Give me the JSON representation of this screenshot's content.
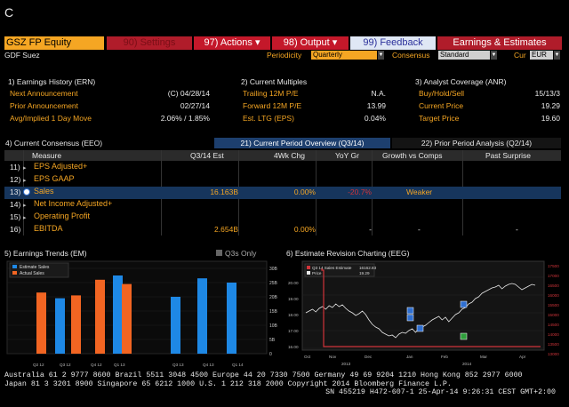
{
  "command": "C",
  "toolbar": {
    "ticker": "GSZ FP Equity",
    "settings": "90) Settings",
    "actions": "97) Actions ▾",
    "output": "98) Output ▾",
    "feedback": "99) Feedback",
    "earnings": "Earnings & Estimates"
  },
  "subbar": {
    "company": "GDF Suez",
    "periodicity_label": "Periodicity",
    "periodicity_value": "Quarterly",
    "consensus_label": "Consensus",
    "consensus_value": "Standard",
    "cur_label": "Cur",
    "cur_value": "EUR"
  },
  "earnings_history": {
    "title": "1) Earnings History (ERN)",
    "rows": [
      {
        "label": "Next Announcement",
        "value": "(C)  04/28/14"
      },
      {
        "label": "Prior Announcement",
        "value": "02/27/14"
      },
      {
        "label": "Avg/Implied 1 Day Move",
        "value": "2.06% / 1.85%"
      }
    ]
  },
  "current_multiples": {
    "title": "2) Current Multiples",
    "rows": [
      {
        "label": "Trailing 12M P/E",
        "value": "N.A."
      },
      {
        "label": "Forward 12M P/E",
        "value": "13.99"
      },
      {
        "label": "Est. LTG (EPS)",
        "value": "0.04%"
      }
    ]
  },
  "analyst_coverage": {
    "title": "3) Analyst Coverage (ANR)",
    "rows": [
      {
        "label": "Buy/Hold/Sell",
        "value": "15/13/3"
      },
      {
        "label": "Current Price",
        "value": "19.29"
      },
      {
        "label": "Target Price",
        "value": "19.60"
      }
    ]
  },
  "consensus": {
    "title": "4) Current Consensus (EEO)",
    "tab_current": "21) Current Period Overview (Q3/14)",
    "tab_prior": "22) Prior Period Analysis (Q2/14)",
    "headers": [
      "Measure",
      "Q3/14 Est",
      "4Wk Chg",
      "YoY Gr",
      "Growth vs Comps",
      "Past Surprise"
    ],
    "rows": [
      {
        "num": "11)",
        "name": "EPS Adjusted+",
        "est": "",
        "chg": "",
        "yoy": "",
        "growth": "",
        "surprise": ""
      },
      {
        "num": "12)",
        "name": "EPS GAAP",
        "est": "",
        "chg": "",
        "yoy": "",
        "growth": "",
        "surprise": ""
      },
      {
        "num": "13)",
        "name": "Sales",
        "est": "16.163B",
        "chg": "0.00%",
        "yoy": "-20.7%",
        "growth": "Weaker",
        "surprise": ""
      },
      {
        "num": "14)",
        "name": "Net Income Adjusted+",
        "est": "",
        "chg": "",
        "yoy": "",
        "growth": "",
        "surprise": ""
      },
      {
        "num": "15)",
        "name": "Operating Profit",
        "est": "",
        "chg": "",
        "yoy": "",
        "growth": "",
        "surprise": ""
      },
      {
        "num": "16)",
        "name": "EBITDA",
        "est": "2.654B",
        "chg": "0.00%",
        "yoy": "-",
        "growth": "-",
        "surprise": "-"
      }
    ]
  },
  "earnings_trends": {
    "title": "5) Earnings Trends (EM)",
    "q3s_only": "Q3s Only",
    "legend": [
      "Estimate Sales",
      "Actual Sales"
    ],
    "colors": {
      "estimate": "#1e88e5",
      "actual": "#f26522"
    },
    "x_labels": [
      "Q2 12",
      "Q3 12",
      "Q4 12",
      "Q1 13",
      "Q2 13",
      "Q3 13",
      "Q4 13",
      "Q1 14"
    ],
    "y_ticks": [
      "30B",
      "25B",
      "20B",
      "15B",
      "10B",
      "5B",
      "0"
    ],
    "bars": [
      {
        "type": "actual",
        "value": 21.5
      },
      {
        "type": "estimate",
        "value": 19.5
      },
      {
        "type": "actual",
        "value": 20.5
      },
      {
        "type": "actual",
        "value": 26
      },
      {
        "type": "estimate",
        "value": 27.5
      },
      {
        "type": "actual",
        "value": 24.5
      },
      {
        "type": "estimate",
        "value": 20
      },
      {
        "type": "estimate",
        "value": 26.5
      },
      {
        "type": "estimate",
        "value": 25
      }
    ]
  },
  "revision_chart": {
    "title": "6) Estimate Revision Charting (EEG)",
    "legend": [
      {
        "label": "Q3 14 Sales Estimate",
        "value": "16162.83",
        "color": "#d0343a"
      },
      {
        "label": "Price",
        "value": "19.29",
        "color": "#e8e8e8"
      }
    ],
    "x_labels": [
      "Oct",
      "Nov",
      "Dec",
      "Jan",
      "Feb",
      "Mar",
      "Apr"
    ],
    "year_labels": [
      "2013",
      "2014"
    ],
    "y_left": [
      "20.00",
      "19.00",
      "18.00",
      "17.00",
      "16.00"
    ],
    "y_right": [
      "17500",
      "17000",
      "16500",
      "16000",
      "15500",
      "15000",
      "14500",
      "14000",
      "13500",
      "13000"
    ]
  },
  "footer": {
    "line1": "Australia 61 2 9777 8600 Brazil 5511 3048 4500 Europe 44 20 7330 7500 Germany 49 69 9204 1210 Hong Kong 852 2977 6000",
    "line2": "Japan 81 3 3201 8900         Singapore 65 6212 1000           U.S. 1 212 318 2000         Copyright 2014 Bloomberg Finance L.P.",
    "line3": "SN 455219 H472-607-1 25-Apr-14  9:26:31 CEST GMT+2:00"
  }
}
